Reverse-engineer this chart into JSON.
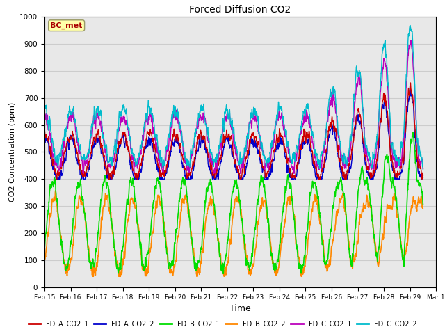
{
  "title": "Forced Diffusion CO2",
  "xlabel": "Time",
  "ylabel": "CO2 Concentration (ppm)",
  "ylim": [
    0,
    1000
  ],
  "x_tick_labels": [
    "Feb 15",
    "Feb 16",
    "Feb 17",
    "Feb 18",
    "Feb 19",
    "Feb 20",
    "Feb 21",
    "Feb 22",
    "Feb 23",
    "Feb 24",
    "Feb 25",
    "Feb 26",
    "Feb 27",
    "Feb 28",
    "Feb 29",
    "Mar 1"
  ],
  "annotation": "BC_met",
  "lines": [
    {
      "label": "FD_A_CO2_1",
      "color": "#cc0000",
      "lw": 1.0
    },
    {
      "label": "FD_A_CO2_2",
      "color": "#0000cc",
      "lw": 1.0
    },
    {
      "label": "FD_B_CO2_1",
      "color": "#00dd00",
      "lw": 1.2
    },
    {
      "label": "FD_B_CO2_2",
      "color": "#ff8800",
      "lw": 1.2
    },
    {
      "label": "FD_C_CO2_1",
      "color": "#bb00bb",
      "lw": 1.0
    },
    {
      "label": "FD_C_CO2_2",
      "color": "#00bbcc",
      "lw": 1.0
    }
  ],
  "grid_color": "#cccccc",
  "plot_bg": "#e8e8e8",
  "fig_bg": "#ffffff"
}
